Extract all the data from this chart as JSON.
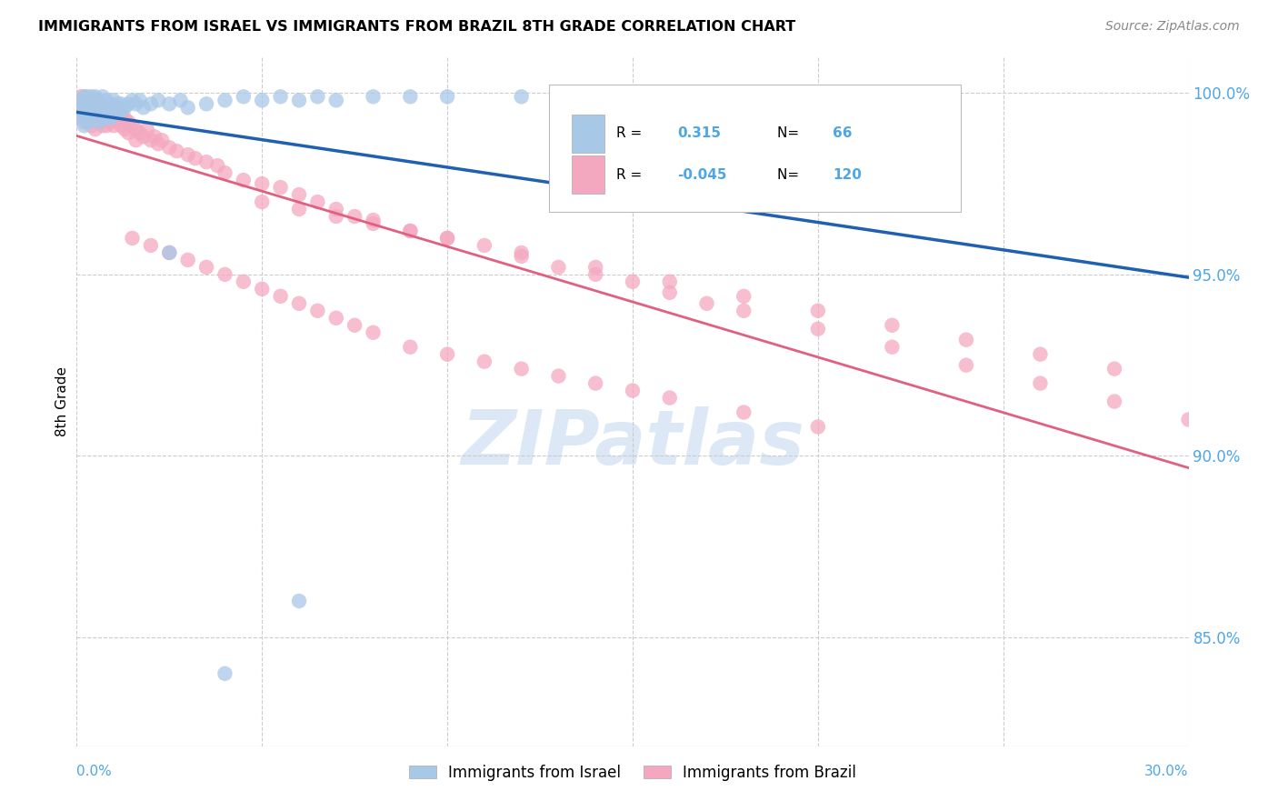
{
  "title": "IMMIGRANTS FROM ISRAEL VS IMMIGRANTS FROM BRAZIL 8TH GRADE CORRELATION CHART",
  "source": "Source: ZipAtlas.com",
  "ylabel": "8th Grade",
  "legend_israel_label": "Immigrants from Israel",
  "legend_brazil_label": "Immigrants from Brazil",
  "israel_R": 0.315,
  "israel_N": 66,
  "brazil_R": -0.045,
  "brazil_N": 120,
  "israel_color": "#a8c8e8",
  "brazil_color": "#f4a8c0",
  "israel_line_color": "#2060b0",
  "brazil_line_color": "#e06080",
  "xmin": 0.0,
  "xmax": 0.3,
  "ymin": 0.82,
  "ymax": 1.01,
  "yticks": [
    0.85,
    0.9,
    0.95,
    1.0
  ],
  "yticklabels": [
    "85.0%",
    "90.0%",
    "95.0%",
    "100.0%"
  ],
  "xtick_color": "#4da6e8",
  "ytick_color": "#4da6e8",
  "grid_color": "#cccccc",
  "watermark_text": "ZIPatlas",
  "watermark_color": "#dce8f5",
  "legend_box_color": "#cccccc",
  "israel_x": [
    0.001,
    0.001,
    0.001,
    0.002,
    0.002,
    0.002,
    0.002,
    0.003,
    0.003,
    0.003,
    0.003,
    0.004,
    0.004,
    0.004,
    0.004,
    0.005,
    0.005,
    0.005,
    0.005,
    0.006,
    0.006,
    0.006,
    0.006,
    0.007,
    0.007,
    0.007,
    0.007,
    0.008,
    0.008,
    0.008,
    0.009,
    0.009,
    0.009,
    0.01,
    0.01,
    0.01,
    0.011,
    0.011,
    0.012,
    0.012,
    0.013,
    0.014,
    0.015,
    0.016,
    0.017,
    0.018,
    0.02,
    0.022,
    0.025,
    0.028,
    0.03,
    0.035,
    0.04,
    0.045,
    0.05,
    0.055,
    0.06,
    0.065,
    0.07,
    0.08,
    0.09,
    0.1,
    0.12,
    0.025,
    0.04,
    0.06
  ],
  "israel_y": [
    0.998,
    0.996,
    0.993,
    0.999,
    0.997,
    0.994,
    0.991,
    0.999,
    0.997,
    0.995,
    0.992,
    0.999,
    0.998,
    0.996,
    0.993,
    0.999,
    0.998,
    0.996,
    0.994,
    0.998,
    0.997,
    0.995,
    0.992,
    0.999,
    0.997,
    0.995,
    0.993,
    0.998,
    0.996,
    0.994,
    0.997,
    0.995,
    0.993,
    0.998,
    0.996,
    0.994,
    0.997,
    0.995,
    0.997,
    0.995,
    0.996,
    0.997,
    0.998,
    0.997,
    0.998,
    0.996,
    0.997,
    0.998,
    0.997,
    0.998,
    0.996,
    0.997,
    0.998,
    0.999,
    0.998,
    0.999,
    0.998,
    0.999,
    0.998,
    0.999,
    0.999,
    0.999,
    0.999,
    0.956,
    0.84,
    0.86
  ],
  "brazil_x": [
    0.001,
    0.001,
    0.001,
    0.002,
    0.002,
    0.002,
    0.002,
    0.003,
    0.003,
    0.003,
    0.004,
    0.004,
    0.004,
    0.004,
    0.005,
    0.005,
    0.005,
    0.005,
    0.006,
    0.006,
    0.006,
    0.007,
    0.007,
    0.007,
    0.008,
    0.008,
    0.008,
    0.009,
    0.009,
    0.01,
    0.01,
    0.01,
    0.011,
    0.011,
    0.012,
    0.012,
    0.013,
    0.013,
    0.014,
    0.014,
    0.015,
    0.016,
    0.016,
    0.017,
    0.018,
    0.019,
    0.02,
    0.021,
    0.022,
    0.023,
    0.025,
    0.027,
    0.03,
    0.032,
    0.035,
    0.038,
    0.04,
    0.045,
    0.05,
    0.055,
    0.06,
    0.065,
    0.07,
    0.075,
    0.08,
    0.09,
    0.1,
    0.11,
    0.12,
    0.13,
    0.14,
    0.15,
    0.16,
    0.17,
    0.18,
    0.2,
    0.22,
    0.24,
    0.26,
    0.28,
    0.3,
    0.05,
    0.06,
    0.07,
    0.08,
    0.09,
    0.1,
    0.12,
    0.14,
    0.16,
    0.18,
    0.2,
    0.22,
    0.24,
    0.26,
    0.28,
    0.015,
    0.02,
    0.025,
    0.03,
    0.035,
    0.04,
    0.045,
    0.05,
    0.055,
    0.06,
    0.065,
    0.07,
    0.075,
    0.08,
    0.09,
    0.1,
    0.11,
    0.12,
    0.13,
    0.14,
    0.15,
    0.16,
    0.18,
    0.2
  ],
  "brazil_y": [
    0.999,
    0.997,
    0.994,
    0.999,
    0.997,
    0.995,
    0.992,
    0.998,
    0.996,
    0.993,
    0.998,
    0.996,
    0.994,
    0.991,
    0.997,
    0.995,
    0.993,
    0.99,
    0.997,
    0.995,
    0.992,
    0.996,
    0.994,
    0.991,
    0.996,
    0.994,
    0.991,
    0.995,
    0.992,
    0.996,
    0.994,
    0.991,
    0.995,
    0.992,
    0.994,
    0.991,
    0.993,
    0.99,
    0.992,
    0.989,
    0.991,
    0.99,
    0.987,
    0.989,
    0.988,
    0.99,
    0.987,
    0.988,
    0.986,
    0.987,
    0.985,
    0.984,
    0.983,
    0.982,
    0.981,
    0.98,
    0.978,
    0.976,
    0.975,
    0.974,
    0.972,
    0.97,
    0.968,
    0.966,
    0.965,
    0.962,
    0.96,
    0.958,
    0.955,
    0.952,
    0.95,
    0.948,
    0.945,
    0.942,
    0.94,
    0.935,
    0.93,
    0.925,
    0.92,
    0.915,
    0.91,
    0.97,
    0.968,
    0.966,
    0.964,
    0.962,
    0.96,
    0.956,
    0.952,
    0.948,
    0.944,
    0.94,
    0.936,
    0.932,
    0.928,
    0.924,
    0.96,
    0.958,
    0.956,
    0.954,
    0.952,
    0.95,
    0.948,
    0.946,
    0.944,
    0.942,
    0.94,
    0.938,
    0.936,
    0.934,
    0.93,
    0.928,
    0.926,
    0.924,
    0.922,
    0.92,
    0.918,
    0.916,
    0.912,
    0.908
  ]
}
